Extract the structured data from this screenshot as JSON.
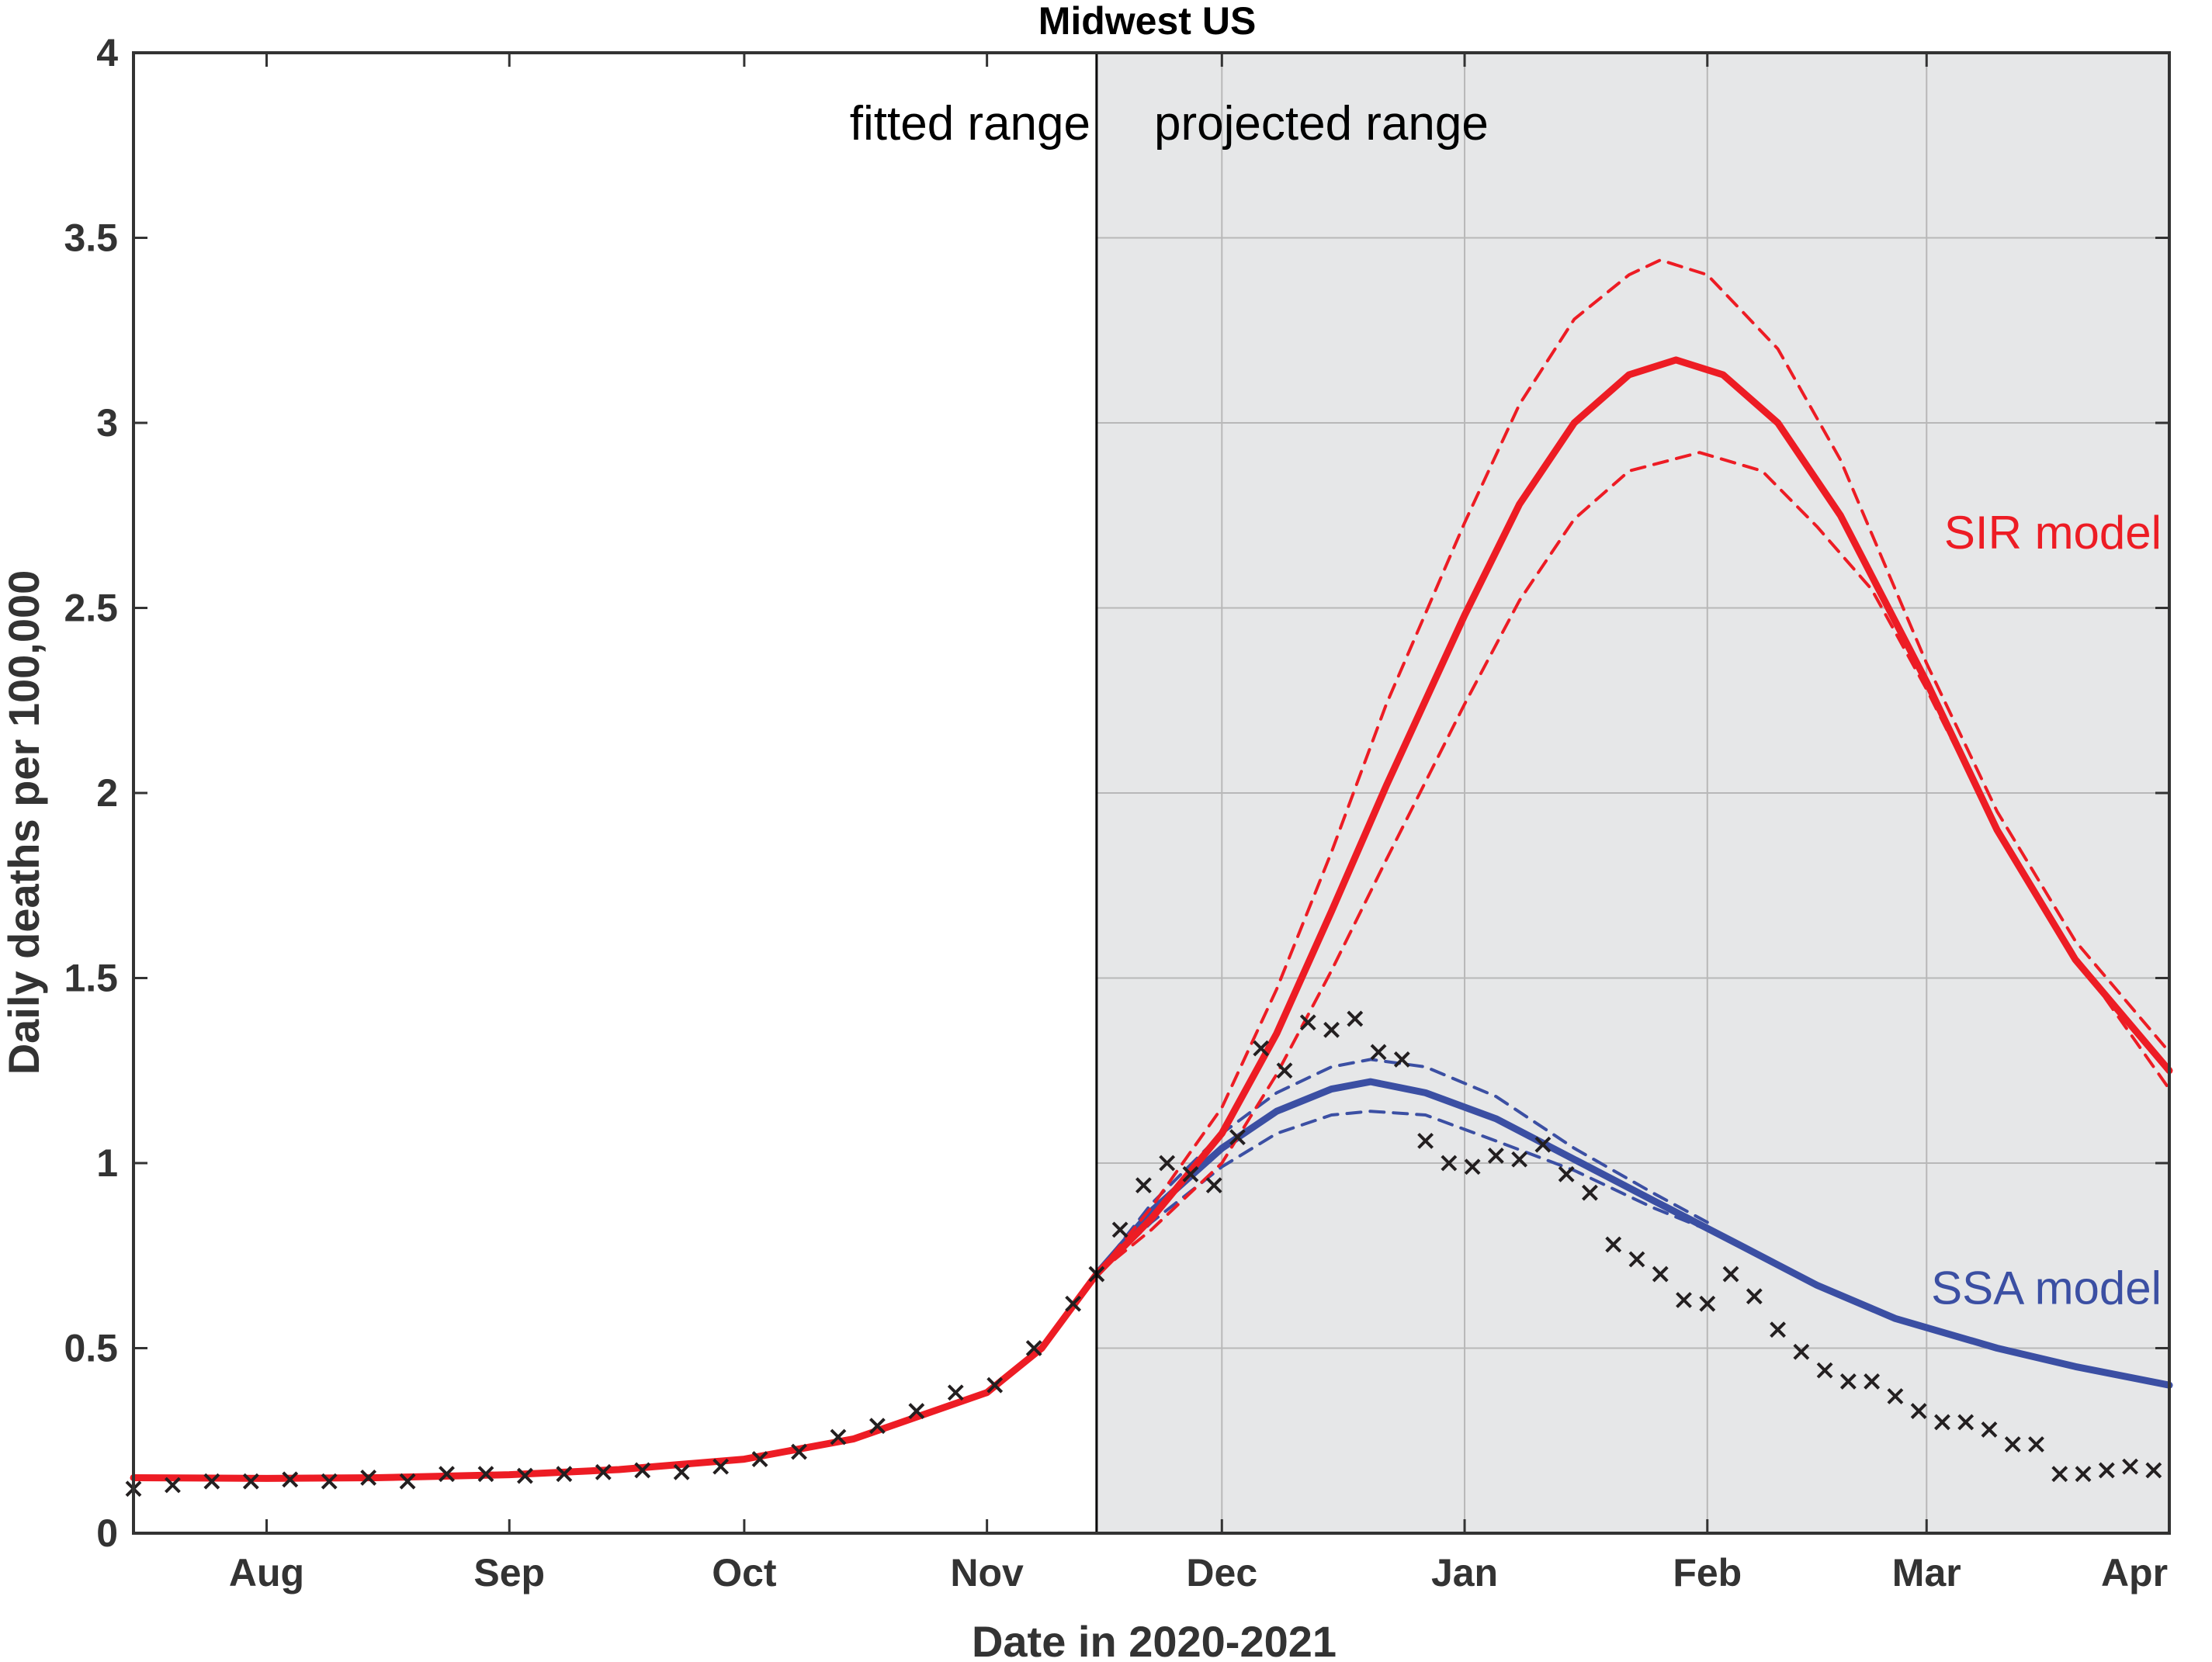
{
  "chart_data": {
    "type": "line",
    "title": "Midwest US",
    "xlabel": "Date in 2020-2021",
    "ylabel": "Daily deaths per 100,000",
    "x_unit": "date",
    "xlim": [
      "2020-07-15",
      "2021-04-01"
    ],
    "ylim": [
      0,
      4
    ],
    "x_ticks": [
      {
        "date": "2020-08-01",
        "label": "Aug"
      },
      {
        "date": "2020-09-01",
        "label": "Sep"
      },
      {
        "date": "2020-10-01",
        "label": "Oct"
      },
      {
        "date": "2020-11-01",
        "label": "Nov"
      },
      {
        "date": "2020-12-01",
        "label": "Dec"
      },
      {
        "date": "2021-01-01",
        "label": "Jan"
      },
      {
        "date": "2021-02-01",
        "label": "Feb"
      },
      {
        "date": "2021-03-01",
        "label": "Mar"
      },
      {
        "date": "2021-04-01",
        "label": "Apr"
      }
    ],
    "y_ticks": [
      {
        "value": 0,
        "label": "0"
      },
      {
        "value": 0.5,
        "label": "0.5"
      },
      {
        "value": 1,
        "label": "1"
      },
      {
        "value": 1.5,
        "label": "1.5"
      },
      {
        "value": 2,
        "label": "2"
      },
      {
        "value": 2.5,
        "label": "2.5"
      },
      {
        "value": 3,
        "label": "3"
      },
      {
        "value": 3.5,
        "label": "3.5"
      },
      {
        "value": 4,
        "label": "4"
      }
    ],
    "grid": true,
    "fit_boundary_date": "2020-11-15",
    "regions": {
      "fitted_label": "fitted range",
      "projected_label": "projected range",
      "projected_shading": "#e6e7e8"
    },
    "series": [
      {
        "name": "SIR model",
        "color": "#ed1c24",
        "style": "solid",
        "points": [
          [
            "2020-07-15",
            0.15
          ],
          [
            "2020-08-01",
            0.148
          ],
          [
            "2020-08-15",
            0.15
          ],
          [
            "2020-09-01",
            0.158
          ],
          [
            "2020-09-15",
            0.172
          ],
          [
            "2020-10-01",
            0.2
          ],
          [
            "2020-10-15",
            0.255
          ],
          [
            "2020-11-01",
            0.38
          ],
          [
            "2020-11-08",
            0.5
          ],
          [
            "2020-11-15",
            0.7
          ],
          [
            "2020-11-22",
            0.85
          ],
          [
            "2020-12-01",
            1.08
          ],
          [
            "2020-12-08",
            1.35
          ],
          [
            "2020-12-15",
            1.68
          ],
          [
            "2020-12-22",
            2.02
          ],
          [
            "2021-01-01",
            2.48
          ],
          [
            "2021-01-08",
            2.78
          ],
          [
            "2021-01-15",
            3.0
          ],
          [
            "2021-01-22",
            3.13
          ],
          [
            "2021-01-28",
            3.17
          ],
          [
            "2021-02-03",
            3.13
          ],
          [
            "2021-02-10",
            3.0
          ],
          [
            "2021-02-18",
            2.75
          ],
          [
            "2021-03-01",
            2.3
          ],
          [
            "2021-03-10",
            1.9
          ],
          [
            "2021-03-20",
            1.55
          ],
          [
            "2021-04-01",
            1.25
          ]
        ]
      },
      {
        "name": "",
        "color": "#ed1c24",
        "style": "dashed",
        "points": [
          [
            "2020-11-15",
            0.7
          ],
          [
            "2020-11-22",
            0.88
          ],
          [
            "2020-12-01",
            1.15
          ],
          [
            "2020-12-08",
            1.47
          ],
          [
            "2020-12-15",
            1.84
          ],
          [
            "2020-12-22",
            2.24
          ],
          [
            "2021-01-01",
            2.73
          ],
          [
            "2021-01-08",
            3.05
          ],
          [
            "2021-01-15",
            3.28
          ],
          [
            "2021-01-22",
            3.4
          ],
          [
            "2021-01-26",
            3.44
          ],
          [
            "2021-02-01",
            3.4
          ],
          [
            "2021-02-10",
            3.2
          ],
          [
            "2021-02-18",
            2.9
          ],
          [
            "2021-03-01",
            2.35
          ],
          [
            "2021-03-10",
            1.95
          ],
          [
            "2021-03-20",
            1.6
          ],
          [
            "2021-04-01",
            1.3
          ]
        ]
      },
      {
        "name": "",
        "color": "#ed1c24",
        "style": "dashed",
        "points": [
          [
            "2020-11-15",
            0.7
          ],
          [
            "2020-11-22",
            0.82
          ],
          [
            "2020-12-01",
            1.0
          ],
          [
            "2020-12-08",
            1.24
          ],
          [
            "2020-12-15",
            1.52
          ],
          [
            "2020-12-22",
            1.82
          ],
          [
            "2021-01-01",
            2.24
          ],
          [
            "2021-01-08",
            2.52
          ],
          [
            "2021-01-15",
            2.74
          ],
          [
            "2021-01-22",
            2.87
          ],
          [
            "2021-01-31",
            2.92
          ],
          [
            "2021-02-08",
            2.87
          ],
          [
            "2021-02-15",
            2.72
          ],
          [
            "2021-02-22",
            2.55
          ],
          [
            "2021-03-01",
            2.28
          ],
          [
            "2021-03-10",
            1.9
          ],
          [
            "2021-03-20",
            1.56
          ],
          [
            "2021-04-01",
            1.2
          ]
        ]
      },
      {
        "name": "SSA model",
        "color": "#3b4fa3",
        "style": "solid",
        "points": [
          [
            "2020-11-15",
            0.7
          ],
          [
            "2020-11-22",
            0.87
          ],
          [
            "2020-12-01",
            1.04
          ],
          [
            "2020-12-08",
            1.14
          ],
          [
            "2020-12-15",
            1.2
          ],
          [
            "2020-12-20",
            1.22
          ],
          [
            "2020-12-27",
            1.19
          ],
          [
            "2021-01-05",
            1.12
          ],
          [
            "2021-01-15",
            1.01
          ],
          [
            "2021-01-25",
            0.9
          ],
          [
            "2021-02-05",
            0.78
          ],
          [
            "2021-02-15",
            0.67
          ],
          [
            "2021-02-25",
            0.58
          ],
          [
            "2021-03-10",
            0.5
          ],
          [
            "2021-03-20",
            0.45
          ],
          [
            "2021-04-01",
            0.4
          ]
        ]
      },
      {
        "name": "",
        "color": "#3b4fa3",
        "style": "dashed",
        "points": [
          [
            "2020-11-15",
            0.7
          ],
          [
            "2020-11-22",
            0.89
          ],
          [
            "2020-12-01",
            1.08
          ],
          [
            "2020-12-08",
            1.19
          ],
          [
            "2020-12-15",
            1.26
          ],
          [
            "2020-12-20",
            1.28
          ],
          [
            "2020-12-27",
            1.26
          ],
          [
            "2021-01-05",
            1.18
          ],
          [
            "2021-01-15",
            1.04
          ],
          [
            "2021-01-25",
            0.92
          ],
          [
            "2021-02-01",
            0.84
          ]
        ]
      },
      {
        "name": "",
        "color": "#3b4fa3",
        "style": "dashed",
        "points": [
          [
            "2020-11-15",
            0.7
          ],
          [
            "2020-11-22",
            0.84
          ],
          [
            "2020-12-01",
            0.99
          ],
          [
            "2020-12-08",
            1.08
          ],
          [
            "2020-12-15",
            1.13
          ],
          [
            "2020-12-20",
            1.14
          ],
          [
            "2020-12-27",
            1.13
          ],
          [
            "2021-01-05",
            1.06
          ],
          [
            "2021-01-15",
            0.98
          ],
          [
            "2021-01-25",
            0.88
          ],
          [
            "2021-02-01",
            0.82
          ]
        ]
      }
    ],
    "observed": {
      "marker": "x",
      "color": "#231f20",
      "points": [
        [
          "2020-07-15",
          0.12
        ],
        [
          "2020-07-20",
          0.13
        ],
        [
          "2020-07-25",
          0.14
        ],
        [
          "2020-07-30",
          0.14
        ],
        [
          "2020-08-04",
          0.145
        ],
        [
          "2020-08-09",
          0.14
        ],
        [
          "2020-08-14",
          0.15
        ],
        [
          "2020-08-19",
          0.14
        ],
        [
          "2020-08-24",
          0.16
        ],
        [
          "2020-08-29",
          0.16
        ],
        [
          "2020-09-03",
          0.155
        ],
        [
          "2020-09-08",
          0.16
        ],
        [
          "2020-09-13",
          0.165
        ],
        [
          "2020-09-18",
          0.17
        ],
        [
          "2020-09-23",
          0.165
        ],
        [
          "2020-09-28",
          0.18
        ],
        [
          "2020-10-03",
          0.2
        ],
        [
          "2020-10-08",
          0.22
        ],
        [
          "2020-10-13",
          0.26
        ],
        [
          "2020-10-18",
          0.29
        ],
        [
          "2020-10-23",
          0.33
        ],
        [
          "2020-10-28",
          0.38
        ],
        [
          "2020-11-02",
          0.4
        ],
        [
          "2020-11-07",
          0.5
        ],
        [
          "2020-11-12",
          0.62
        ],
        [
          "2020-11-15",
          0.7
        ],
        [
          "2020-11-18",
          0.82
        ],
        [
          "2020-11-21",
          0.94
        ],
        [
          "2020-11-24",
          1.0
        ],
        [
          "2020-11-27",
          0.97
        ],
        [
          "2020-11-30",
          0.94
        ],
        [
          "2020-12-03",
          1.07
        ],
        [
          "2020-12-06",
          1.31
        ],
        [
          "2020-12-09",
          1.25
        ],
        [
          "2020-12-12",
          1.38
        ],
        [
          "2020-12-15",
          1.36
        ],
        [
          "2020-12-18",
          1.39
        ],
        [
          "2020-12-21",
          1.3
        ],
        [
          "2020-12-24",
          1.28
        ],
        [
          "2020-12-27",
          1.06
        ],
        [
          "2020-12-30",
          1.0
        ],
        [
          "2021-01-02",
          0.99
        ],
        [
          "2021-01-05",
          1.02
        ],
        [
          "2021-01-08",
          1.01
        ],
        [
          "2021-01-11",
          1.05
        ],
        [
          "2021-01-14",
          0.97
        ],
        [
          "2021-01-17",
          0.92
        ],
        [
          "2021-01-20",
          0.78
        ],
        [
          "2021-01-23",
          0.74
        ],
        [
          "2021-01-26",
          0.7
        ],
        [
          "2021-01-29",
          0.63
        ],
        [
          "2021-02-01",
          0.62
        ],
        [
          "2021-02-04",
          0.7
        ],
        [
          "2021-02-07",
          0.64
        ],
        [
          "2021-02-10",
          0.55
        ],
        [
          "2021-02-13",
          0.49
        ],
        [
          "2021-02-16",
          0.44
        ],
        [
          "2021-02-19",
          0.41
        ],
        [
          "2021-02-22",
          0.41
        ],
        [
          "2021-02-25",
          0.37
        ],
        [
          "2021-02-28",
          0.33
        ],
        [
          "2021-03-03",
          0.3
        ],
        [
          "2021-03-06",
          0.3
        ],
        [
          "2021-03-09",
          0.28
        ],
        [
          "2021-03-12",
          0.24
        ],
        [
          "2021-03-15",
          0.24
        ],
        [
          "2021-03-18",
          0.16
        ],
        [
          "2021-03-21",
          0.16
        ],
        [
          "2021-03-24",
          0.17
        ],
        [
          "2021-03-27",
          0.18
        ],
        [
          "2021-03-30",
          0.17
        ]
      ]
    },
    "annotations": [
      {
        "text": "SIR model",
        "color": "#ed1c24",
        "date": "2021-03-03",
        "value": 2.66
      },
      {
        "text": "SSA model",
        "color": "#3b4fa3",
        "date": "2021-03-03",
        "value": 0.62
      }
    ]
  }
}
